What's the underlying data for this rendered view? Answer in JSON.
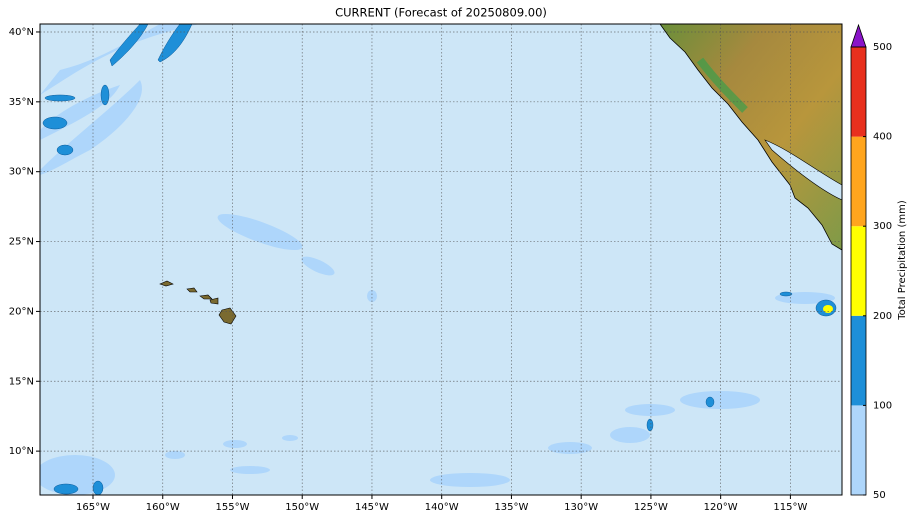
{
  "map": {
    "title": "CURRENT (Forecast of 20250809.00)",
    "xlim": [
      -168.8,
      -111.3
    ],
    "ylim": [
      6.86,
      40.57
    ],
    "xticks": [
      {
        "value": -165,
        "label": "165°W"
      },
      {
        "value": -160,
        "label": "160°W"
      },
      {
        "value": -155,
        "label": "155°W"
      },
      {
        "value": -150,
        "label": "150°W"
      },
      {
        "value": -145,
        "label": "145°W"
      },
      {
        "value": -140,
        "label": "140°W"
      },
      {
        "value": -135,
        "label": "135°W"
      },
      {
        "value": -130,
        "label": "130°W"
      },
      {
        "value": -125,
        "label": "125°W"
      },
      {
        "value": -120,
        "label": "120°W"
      },
      {
        "value": -115,
        "label": "115°W"
      }
    ],
    "yticks": [
      {
        "value": 10,
        "label": "10°N"
      },
      {
        "value": 15,
        "label": "15°N"
      },
      {
        "value": 20,
        "label": "20°N"
      },
      {
        "value": 25,
        "label": "25°N"
      },
      {
        "value": 30,
        "label": "30°N"
      },
      {
        "value": 35,
        "label": "35°N"
      },
      {
        "value": 40,
        "label": "40°N"
      }
    ],
    "grid": true,
    "colorbar": {
      "label": "Total Precipitation (mm)",
      "ticks": [
        50,
        100,
        200,
        300,
        400,
        500
      ],
      "colors": [
        "#aed6fb",
        "#1e8fd8",
        "#ffff00",
        "#ffa51e",
        "#e8301e"
      ],
      "extend_color": "#8a14c8"
    }
  }
}
